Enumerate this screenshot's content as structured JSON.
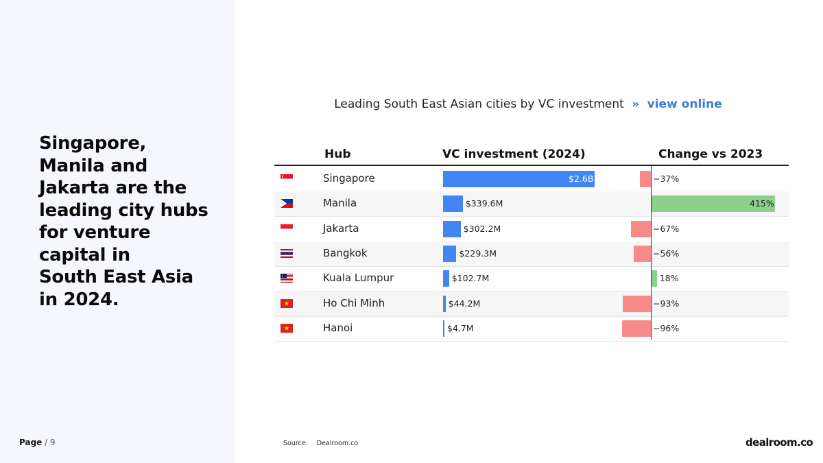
{
  "headline": [
    "Singapore,",
    "Manila and",
    "Jakarta are the",
    "leading city hubs",
    "for venture",
    "capital in",
    "South East Asia",
    "in 2024."
  ],
  "page": {
    "label": "Page",
    "total": "/ 9"
  },
  "chart": {
    "title": "Leading South East Asian cities by VC investment",
    "separator": "»",
    "link_text": "view online"
  },
  "chart_data": {
    "type": "table",
    "columns": [
      "Hub",
      "VC investment (2024)",
      "Change vs 2023"
    ],
    "rows": [
      {
        "flag": "singapore-flag-icon",
        "hub": "Singapore",
        "investment_musd": 2600,
        "investment_label": "$2.6B",
        "change_pct": -37,
        "change_label": "−37%"
      },
      {
        "flag": "philippines-flag-icon",
        "hub": "Manila",
        "investment_musd": 339.6,
        "investment_label": "$339.6M",
        "change_pct": 415,
        "change_label": "415%"
      },
      {
        "flag": "indonesia-flag-icon",
        "hub": "Jakarta",
        "investment_musd": 302.2,
        "investment_label": "$302.2M",
        "change_pct": -67,
        "change_label": "−67%"
      },
      {
        "flag": "thailand-flag-icon",
        "hub": "Bangkok",
        "investment_musd": 229.3,
        "investment_label": "$229.3M",
        "change_pct": -56,
        "change_label": "−56%"
      },
      {
        "flag": "malaysia-flag-icon",
        "hub": "Kuala Lumpur",
        "investment_musd": 102.7,
        "investment_label": "$102.7M",
        "change_pct": 18,
        "change_label": "18%"
      },
      {
        "flag": "vietnam-flag-icon",
        "hub": "Ho Chi Minh",
        "investment_musd": 44.2,
        "investment_label": "$44.2M",
        "change_pct": -93,
        "change_label": "−93%"
      },
      {
        "flag": "vietnam-flag-icon",
        "hub": "Hanoi",
        "investment_musd": 4.7,
        "investment_label": "$4.7M",
        "change_pct": -96,
        "change_label": "−96%"
      }
    ],
    "colors": {
      "investment": "#4285f4",
      "change_negative": "#f98a8a",
      "change_positive": "#8bd18b"
    }
  },
  "source": {
    "label": "Source:",
    "value": "Dealroom.co"
  },
  "logo": "dealroom.co"
}
